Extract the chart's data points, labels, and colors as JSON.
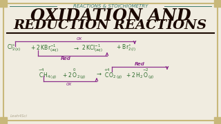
{
  "bg_color": "#f0ece0",
  "border_color": "#c8b87a",
  "title_sub": "REACTIONS & STOICHIOMETRY",
  "title_sub_color": "#3a7a6a",
  "title_line1": "OXIDATION AND",
  "title_line2": "REDUCTION REACTIONS",
  "title_color": "#1a0800",
  "eq_color": "#2a6a2a",
  "purple_color": "#8b2d8b",
  "red_label_color": "#cc2200",
  "watermark": "Leah4Sci",
  "watermark_color": "#b0a890"
}
